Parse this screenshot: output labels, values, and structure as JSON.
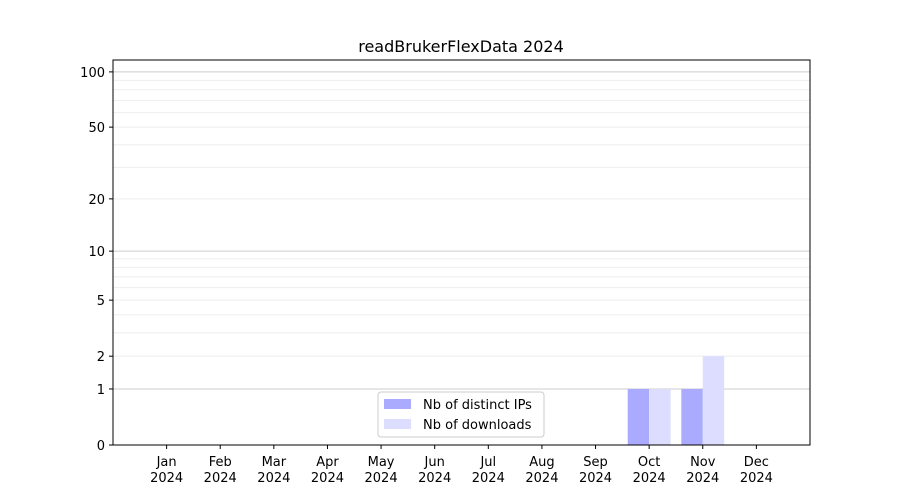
{
  "chart_data": {
    "type": "bar",
    "title": "readBrukerFlexData 2024",
    "xlabel": "",
    "ylabel": "",
    "yscale": "log(1+y)",
    "ylim": [
      0,
      116
    ],
    "grid": true,
    "categories": [
      "Jan\n2024",
      "Feb\n2024",
      "Mar\n2024",
      "Apr\n2024",
      "May\n2024",
      "Jun\n2024",
      "Jul\n2024",
      "Aug\n2024",
      "Sep\n2024",
      "Oct\n2024",
      "Nov\n2024",
      "Dec\n2024"
    ],
    "category_labels": [
      [
        "Jan",
        "2024"
      ],
      [
        "Feb",
        "2024"
      ],
      [
        "Mar",
        "2024"
      ],
      [
        "Apr",
        "2024"
      ],
      [
        "May",
        "2024"
      ],
      [
        "Jun",
        "2024"
      ],
      [
        "Jul",
        "2024"
      ],
      [
        "Aug",
        "2024"
      ],
      [
        "Sep",
        "2024"
      ],
      [
        "Oct",
        "2024"
      ],
      [
        "Nov",
        "2024"
      ],
      [
        "Dec",
        "2024"
      ]
    ],
    "yticks": [
      0,
      1,
      2,
      5,
      10,
      20,
      50,
      100
    ],
    "ytick_labels": [
      "0",
      "1",
      "2",
      "5",
      "10",
      "20",
      "50",
      "100"
    ],
    "legend_position": "bottom-center",
    "series": [
      {
        "name": "Nb of distinct IPs",
        "color": "#aaaaff",
        "values": [
          0,
          0,
          0,
          0,
          0,
          0,
          0,
          0,
          0,
          1,
          1,
          0
        ]
      },
      {
        "name": "Nb of downloads",
        "color": "#ddddff",
        "values": [
          0,
          0,
          0,
          0,
          0,
          0,
          0,
          0,
          0,
          1,
          2,
          0
        ]
      }
    ]
  }
}
